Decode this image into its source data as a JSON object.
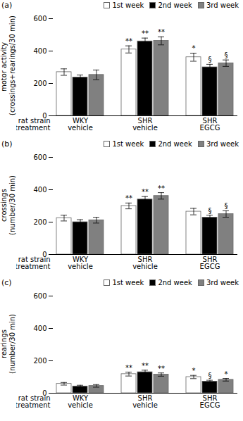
{
  "chart_data": [
    {
      "type": "bar",
      "title": "(a)",
      "ylabel": "motor activity\n(crossings+rearings/30 min)",
      "xlabel": "rat strain\ntreatment",
      "categories": [
        "WKY\nvehicle",
        "SHR\nvehicle",
        "SHR\nEGCG"
      ],
      "series": [
        {
          "name": "1st week",
          "color": "white",
          "values": [
            270,
            410,
            362
          ],
          "errors": [
            20,
            22,
            25
          ],
          "annotations": [
            null,
            "**",
            "*"
          ]
        },
        {
          "name": "2nd week",
          "color": "black",
          "values": [
            237,
            460,
            300
          ],
          "errors": [
            15,
            20,
            18
          ],
          "annotations": [
            null,
            "**",
            "§"
          ]
        },
        {
          "name": "3rd week",
          "color": "gray",
          "values": [
            253,
            463,
            325
          ],
          "errors": [
            30,
            25,
            20
          ],
          "annotations": [
            null,
            "**",
            "§"
          ]
        }
      ],
      "ylim": [
        0,
        600
      ],
      "yticks": [
        0,
        200,
        400,
        600
      ],
      "grid": false,
      "legend": "upper right"
    },
    {
      "type": "bar",
      "title": "(b)",
      "ylabel": "crossings\n(number/30 min)",
      "xlabel": "rat strain\ntreatment",
      "categories": [
        "WKY\nvehicle",
        "SHR\nvehicle",
        "SHR\nEGCG"
      ],
      "series": [
        {
          "name": "1st week",
          "color": "white",
          "values": [
            225,
            300,
            265
          ],
          "errors": [
            18,
            18,
            20
          ],
          "annotations": [
            null,
            "**",
            null
          ]
        },
        {
          "name": "2nd week",
          "color": "black",
          "values": [
            200,
            340,
            228
          ],
          "errors": [
            15,
            18,
            15
          ],
          "annotations": [
            null,
            "**",
            "§"
          ]
        },
        {
          "name": "3rd week",
          "color": "gray",
          "values": [
            212,
            362,
            250
          ],
          "errors": [
            18,
            20,
            20
          ],
          "annotations": [
            null,
            "**",
            "§"
          ]
        }
      ],
      "ylim": [
        0,
        600
      ],
      "yticks": [
        0,
        200,
        400,
        600
      ],
      "grid": false,
      "legend": "upper right"
    },
    {
      "type": "bar",
      "title": "(c)",
      "ylabel": "rearings\n(number/30 min)",
      "xlabel": "rat strain\ntreatment",
      "categories": [
        "WKY\nvehicle",
        "SHR\nvehicle",
        "SHR\nEGCG"
      ],
      "series": [
        {
          "name": "1st week",
          "color": "white",
          "values": [
            58,
            118,
            100
          ],
          "errors": [
            8,
            12,
            10
          ],
          "annotations": [
            null,
            "**",
            "*"
          ]
        },
        {
          "name": "2nd week",
          "color": "black",
          "values": [
            42,
            130,
            72
          ],
          "errors": [
            7,
            12,
            8
          ],
          "annotations": [
            null,
            "**",
            "§"
          ]
        },
        {
          "name": "3rd week",
          "color": "gray",
          "values": [
            45,
            115,
            83
          ],
          "errors": [
            8,
            10,
            8
          ],
          "annotations": [
            null,
            "**",
            "*"
          ]
        }
      ],
      "ylim": [
        0,
        600
      ],
      "yticks": [
        0,
        200,
        400,
        600
      ],
      "grid": false,
      "legend": "upper right"
    }
  ]
}
